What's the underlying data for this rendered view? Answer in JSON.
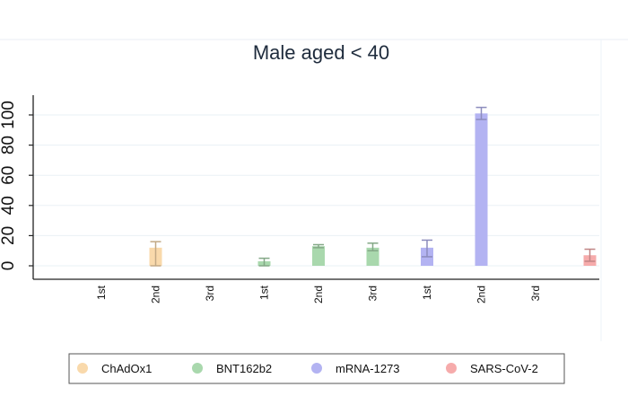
{
  "chart_data": {
    "type": "bar",
    "title": "Male aged < 40",
    "xlabel": "",
    "ylabel": "",
    "categories": [
      "1st",
      "2nd",
      "3rd",
      "1st",
      "2nd",
      "3rd",
      "1st",
      "2nd",
      "3rd",
      ""
    ],
    "ylim": [
      0,
      100
    ],
    "yticks": [
      "0",
      "20",
      "40",
      "60",
      "80",
      "100"
    ],
    "grid": true,
    "legend_position": "bottom",
    "series": [
      {
        "name": "ChAdOx1",
        "color": "#f9d9ab",
        "points": [
          {
            "category_index": 1,
            "value": 12,
            "err_low": 0,
            "err_high": 16
          }
        ]
      },
      {
        "name": "BNT162b2",
        "color": "#a9d8ad",
        "points": [
          {
            "category_index": 3,
            "value": 3,
            "err_low": 0,
            "err_high": 5
          },
          {
            "category_index": 4,
            "value": 13,
            "err_low": 12,
            "err_high": 14
          },
          {
            "category_index": 5,
            "value": 12,
            "err_low": 10,
            "err_high": 15
          }
        ]
      },
      {
        "name": "mRNA-1273",
        "color": "#b3b3f2",
        "points": [
          {
            "category_index": 6,
            "value": 12,
            "err_low": 6,
            "err_high": 17
          },
          {
            "category_index": 7,
            "value": 101,
            "err_low": 97,
            "err_high": 105
          }
        ]
      },
      {
        "name": "SARS-CoV-2",
        "color": "#f6abab",
        "points": [
          {
            "category_index": 9,
            "value": 7,
            "err_low": 3,
            "err_high": 11
          }
        ]
      }
    ]
  }
}
